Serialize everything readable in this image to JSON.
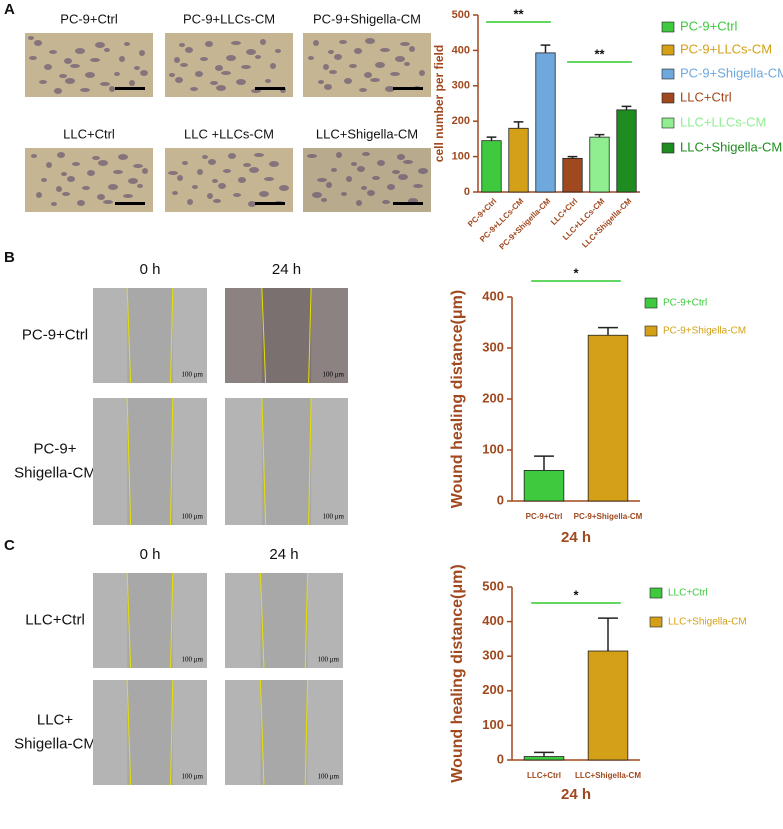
{
  "panels": [
    {
      "letter": "A",
      "image_labels": [
        "PC-9+Ctrl",
        "PC-9+LLCs-CM",
        "PC-9+Shigella-CM",
        "LLC+Ctrl",
        "LLC +LLCs-CM",
        "LLC+Shigella-CM"
      ]
    },
    {
      "letter": "B",
      "columns": [
        "0 h",
        "24 h"
      ],
      "rows": [
        [
          "PC-9+Ctrl"
        ],
        [
          "PC-9+",
          "Shigella-CM"
        ]
      ],
      "scale_label": "100 μm"
    },
    {
      "letter": "C",
      "columns": [
        "0 h",
        "24 h"
      ],
      "rows": [
        [
          "LLC+Ctrl"
        ],
        [
          "LLC+",
          "Shigella-CM"
        ]
      ],
      "scale_label": "100 μm"
    }
  ],
  "chart_data": [
    {
      "type": "bar",
      "y_label": "cell number per field",
      "categories": [
        "PC-9+Ctrl",
        "PC-9+LLCs-CM",
        "PC-9+Shigella-CM",
        "LLC+Ctrl",
        "LLC+LLCs-CM",
        "LLC+Shigella-CM"
      ],
      "values": [
        145,
        180,
        393,
        95,
        155,
        232
      ],
      "errors": [
        10,
        18,
        22,
        5,
        7,
        10
      ],
      "colors": [
        "#3ec93e",
        "#d4a017",
        "#6fa8dc",
        "#a0481e",
        "#90ee90",
        "#1e8c1e"
      ],
      "ylim": [
        0,
        500
      ],
      "yticks": [
        0,
        100,
        200,
        300,
        400,
        500
      ],
      "annotations": [
        "**",
        "**"
      ]
    },
    {
      "type": "bar",
      "y_label": "Wound healing distance(μm)",
      "x_label": "24 h",
      "categories": [
        "PC-9+Ctrl",
        "PC-9+Shigella-CM"
      ],
      "values": [
        60,
        325
      ],
      "errors": [
        28,
        15
      ],
      "colors": [
        "#3ec93e",
        "#d4a017"
      ],
      "ylim": [
        0,
        400
      ],
      "yticks": [
        0,
        100,
        200,
        300,
        400
      ],
      "annotations": [
        "*"
      ]
    },
    {
      "type": "bar",
      "y_label": "Wound healing distance(μm)",
      "x_label": "24 h",
      "categories": [
        "LLC+Ctrl",
        "LLC+Shigella-CM"
      ],
      "values": [
        10,
        315
      ],
      "errors": [
        12,
        95
      ],
      "colors": [
        "#3ec93e",
        "#d4a017"
      ],
      "ylim": [
        0,
        500
      ],
      "yticks": [
        0,
        100,
        200,
        300,
        400,
        500
      ],
      "annotations": [
        "*"
      ]
    }
  ]
}
